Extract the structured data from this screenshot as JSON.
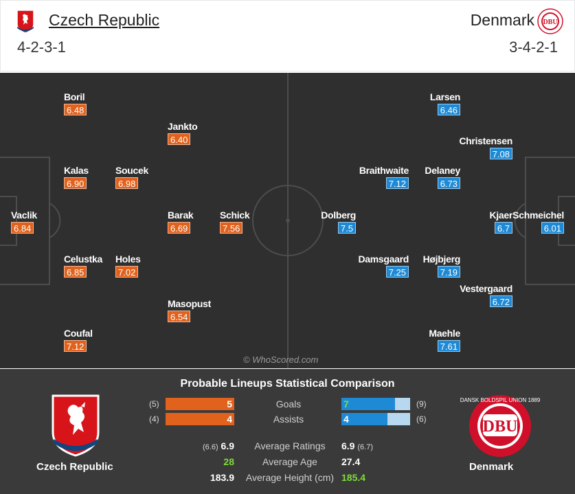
{
  "home": {
    "name": "Czech Republic",
    "formation": "4-2-3-1",
    "crest_icon": "czech-lion-crest-icon",
    "color": "#e0621d"
  },
  "away": {
    "name": "Denmark",
    "formation": "3-4-2-1",
    "crest_icon": "dbu-crest-icon",
    "crest_text": "DBU",
    "crest_ring_text": "DANSK BOLDSPIL UNION 1889",
    "color": "#1e8ad6"
  },
  "home_players": [
    {
      "name": "Boril",
      "rating": "6.48"
    },
    {
      "name": "Jankto",
      "rating": "6.40"
    },
    {
      "name": "Kalas",
      "rating": "6.90"
    },
    {
      "name": "Soucek",
      "rating": "6.98"
    },
    {
      "name": "Vaclik",
      "rating": "6.84"
    },
    {
      "name": "Barak",
      "rating": "6.69"
    },
    {
      "name": "Schick",
      "rating": "7.56"
    },
    {
      "name": "Celustka",
      "rating": "6.85"
    },
    {
      "name": "Holes",
      "rating": "7.02"
    },
    {
      "name": "Masopust",
      "rating": "6.54"
    },
    {
      "name": "Coufal",
      "rating": "7.12"
    }
  ],
  "away_players": [
    {
      "name": "Larsen",
      "rating": "6.46"
    },
    {
      "name": "Christensen",
      "rating": "7.08"
    },
    {
      "name": "Braithwaite",
      "rating": "7.12"
    },
    {
      "name": "Delaney",
      "rating": "6.73"
    },
    {
      "name": "Dolberg",
      "rating": "7.5"
    },
    {
      "name": "Kjaer",
      "rating": "6.7"
    },
    {
      "name": "Schmeichel",
      "rating": "6.01"
    },
    {
      "name": "Damsgaard",
      "rating": "7.25"
    },
    {
      "name": "Højbjerg",
      "rating": "7.19"
    },
    {
      "name": "Vestergaard",
      "rating": "6.72"
    },
    {
      "name": "Maehle",
      "rating": "7.61"
    }
  ],
  "watermark": "© WhoScored.com",
  "comparison": {
    "title": "Probable Lineups Statistical Comparison",
    "stats": [
      {
        "label": "Goals",
        "home_value": "5",
        "home_total": "(5)",
        "home_fraction": 1.0,
        "away_value": "7",
        "away_total": "(9)",
        "away_fraction": 0.78
      },
      {
        "label": "Assists",
        "home_value": "4",
        "home_total": "(4)",
        "home_fraction": 1.0,
        "away_value": "4",
        "away_total": "(6)",
        "away_fraction": 0.67
      }
    ],
    "averages": [
      {
        "label": "Average Ratings",
        "home_value": "6.9",
        "home_extra": "(6.6)",
        "away_value": "6.9",
        "away_extra": "(6.7)"
      },
      {
        "label": "Average Age",
        "home_value": "28",
        "away_value": "27.4"
      },
      {
        "label": "Average Height (cm)",
        "home_value": "183.9",
        "away_value": "185.4"
      }
    ],
    "home_caption": "Czech Republic",
    "away_caption": "Denmark"
  }
}
